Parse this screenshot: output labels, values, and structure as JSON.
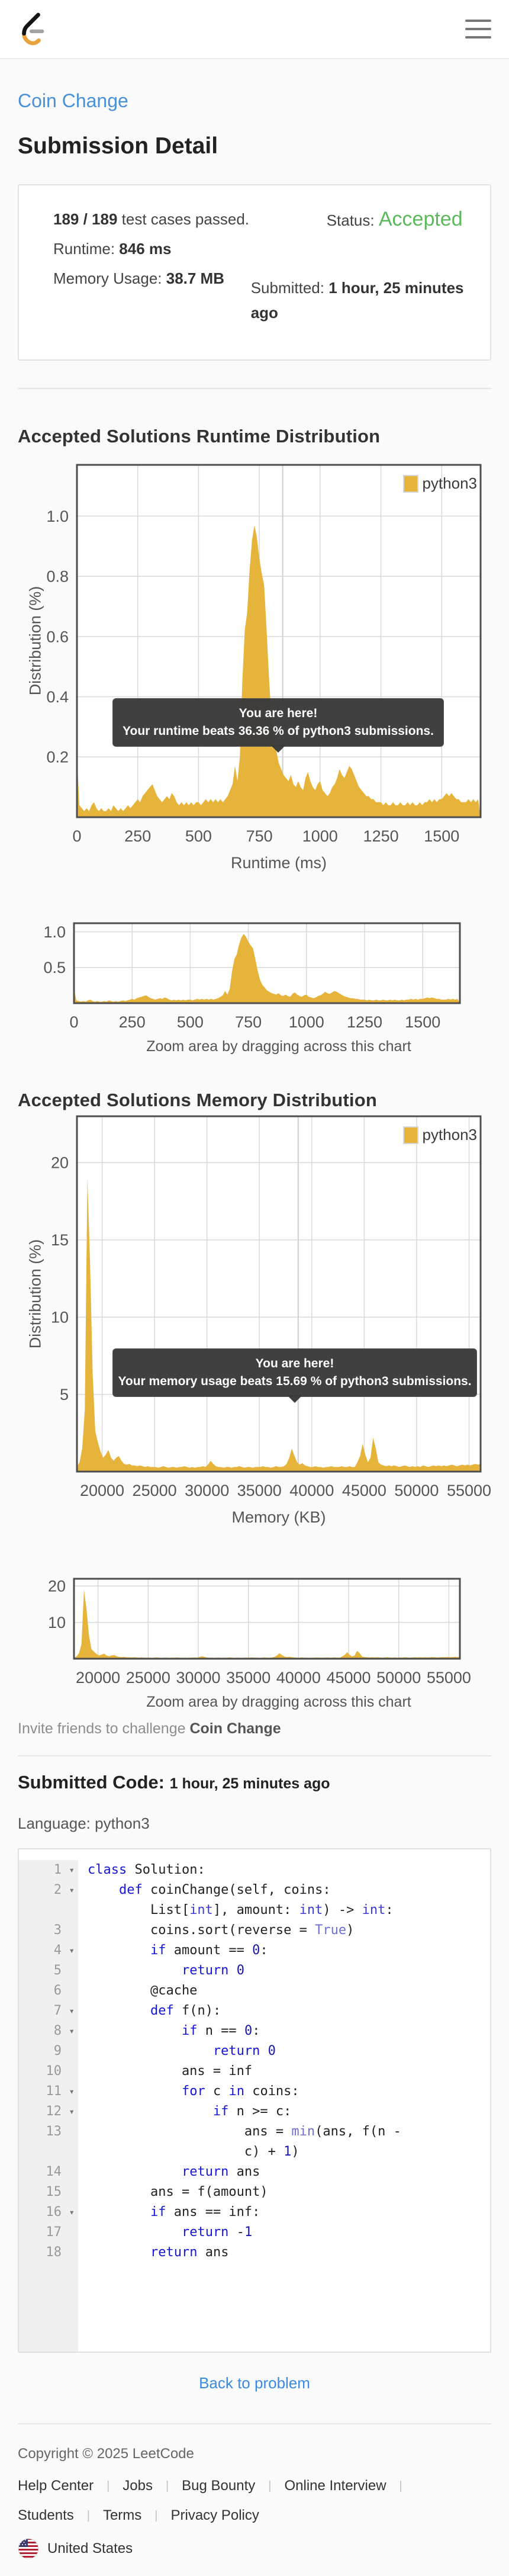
{
  "breadcrumb": {
    "problem_link": "Coin Change"
  },
  "page": {
    "title": "Submission Detail"
  },
  "summary": {
    "tests_bold": "189 / 189",
    "tests_rest": " test cases passed.",
    "runtime_label": "Runtime:",
    "runtime_value": "846 ms",
    "memory_label": "Memory Usage:",
    "memory_value": "38.7 MB",
    "status_label": "Status:",
    "status_value": "Accepted",
    "submitted_label": "Submitted:",
    "submitted_value": "1 hour, 25 minutes ago"
  },
  "runtime_section": {
    "title": "Accepted Solutions Runtime Distribution",
    "tooltip_line1": "You are here!",
    "tooltip_line2": "Your runtime beats 36.36 % of python3 submissions.",
    "zoom_caption": "Zoom area by dragging across this chart"
  },
  "memory_section": {
    "title": "Accepted Solutions Memory Distribution",
    "tooltip_line1": "You are here!",
    "tooltip_line2": "Your memory usage beats 15.69 % of python3 submissions.",
    "zoom_caption": "Zoom area by dragging across this chart"
  },
  "invite": {
    "prefix": "Invite friends to challenge ",
    "problem": "Coin Change"
  },
  "code_section": {
    "heading": "Submitted Code:",
    "time": "1 hour, 25 minutes ago",
    "language_label": "Language:",
    "language": "python3",
    "back_link": "Back to problem",
    "lines": [
      {
        "n": "1",
        "fold": true,
        "rows": [
          [
            [
              "k",
              "class"
            ],
            [
              "p",
              " Solution:"
            ]
          ]
        ]
      },
      {
        "n": "2",
        "fold": true,
        "rows": [
          [
            [
              "p",
              "    "
            ],
            [
              "k",
              "def"
            ],
            [
              "p",
              " coinChange(self, coins:"
            ]
          ],
          [
            [
              "p",
              "        List["
            ],
            [
              "t",
              "int"
            ],
            [
              "p",
              "], amount: "
            ],
            [
              "t",
              "int"
            ],
            [
              "p",
              ") -> "
            ],
            [
              "t",
              "int"
            ],
            [
              "p",
              ":"
            ]
          ]
        ]
      },
      {
        "n": "3",
        "fold": false,
        "rows": [
          [
            [
              "p",
              "        coins.sort(reverse = "
            ],
            [
              "b",
              "True"
            ],
            [
              "p",
              ")"
            ]
          ]
        ]
      },
      {
        "n": "4",
        "fold": true,
        "rows": [
          [
            [
              "p",
              "        "
            ],
            [
              "k",
              "if"
            ],
            [
              "p",
              " amount == "
            ],
            [
              "n",
              "0"
            ],
            [
              "p",
              ":"
            ]
          ]
        ]
      },
      {
        "n": "5",
        "fold": false,
        "rows": [
          [
            [
              "p",
              "            "
            ],
            [
              "k",
              "return"
            ],
            [
              "p",
              " "
            ],
            [
              "n",
              "0"
            ]
          ]
        ]
      },
      {
        "n": "6",
        "fold": false,
        "rows": [
          [
            [
              "p",
              "        @cache"
            ]
          ]
        ]
      },
      {
        "n": "7",
        "fold": true,
        "rows": [
          [
            [
              "p",
              "        "
            ],
            [
              "k",
              "def"
            ],
            [
              "p",
              " f(n):"
            ]
          ]
        ]
      },
      {
        "n": "8",
        "fold": true,
        "rows": [
          [
            [
              "p",
              "            "
            ],
            [
              "k",
              "if"
            ],
            [
              "p",
              " n == "
            ],
            [
              "n",
              "0"
            ],
            [
              "p",
              ":"
            ]
          ]
        ]
      },
      {
        "n": "9",
        "fold": false,
        "rows": [
          [
            [
              "p",
              "                "
            ],
            [
              "k",
              "return"
            ],
            [
              "p",
              " "
            ],
            [
              "n",
              "0"
            ]
          ]
        ]
      },
      {
        "n": "10",
        "fold": false,
        "rows": [
          [
            [
              "p",
              "            ans = inf"
            ]
          ]
        ]
      },
      {
        "n": "11",
        "fold": true,
        "rows": [
          [
            [
              "p",
              "            "
            ],
            [
              "k",
              "for"
            ],
            [
              "p",
              " c "
            ],
            [
              "k",
              "in"
            ],
            [
              "p",
              " coins:"
            ]
          ]
        ]
      },
      {
        "n": "12",
        "fold": true,
        "rows": [
          [
            [
              "p",
              "                "
            ],
            [
              "k",
              "if"
            ],
            [
              "p",
              " n >= c:"
            ]
          ]
        ]
      },
      {
        "n": "13",
        "fold": false,
        "rows": [
          [
            [
              "p",
              "                    ans = "
            ],
            [
              "b",
              "min"
            ],
            [
              "p",
              "(ans, f(n -"
            ]
          ],
          [
            [
              "p",
              "                    c) + "
            ],
            [
              "n",
              "1"
            ],
            [
              "p",
              ")"
            ]
          ]
        ]
      },
      {
        "n": "14",
        "fold": false,
        "rows": [
          [
            [
              "p",
              "            "
            ],
            [
              "k",
              "return"
            ],
            [
              "p",
              " ans"
            ]
          ]
        ]
      },
      {
        "n": "15",
        "fold": false,
        "rows": [
          [
            [
              "p",
              "        ans = f(amount)"
            ]
          ]
        ]
      },
      {
        "n": "16",
        "fold": true,
        "rows": [
          [
            [
              "p",
              "        "
            ],
            [
              "k",
              "if"
            ],
            [
              "p",
              " ans == inf:"
            ]
          ]
        ]
      },
      {
        "n": "17",
        "fold": false,
        "rows": [
          [
            [
              "p",
              "            "
            ],
            [
              "k",
              "return"
            ],
            [
              "p",
              " -"
            ],
            [
              "n",
              "1"
            ]
          ]
        ]
      },
      {
        "n": "18",
        "fold": false,
        "rows": [
          [
            [
              "p",
              "        "
            ],
            [
              "k",
              "return"
            ],
            [
              "p",
              " ans"
            ]
          ]
        ]
      }
    ]
  },
  "footer": {
    "copyright": "Copyright © 2025 LeetCode",
    "separator": "|",
    "links": [
      "Help Center",
      "Jobs",
      "Bug Bounty",
      "Online Interview",
      "Students",
      "Terms",
      "Privacy Policy"
    ],
    "region": "United States"
  },
  "chart_data": [
    {
      "type": "area",
      "name": "runtime-distribution",
      "title": "Accepted Solutions Runtime Distribution",
      "xlabel": "Runtime (ms)",
      "ylabel": "Distribution (%)",
      "legend": "python3",
      "color": "#e7b43b",
      "grid": true,
      "legend_position": "top-right",
      "x_range": [
        0,
        1660
      ],
      "y_range": [
        0,
        1.17
      ],
      "x_start": 0,
      "x_step": 10,
      "marker_x": 846,
      "xticks": [
        {
          "v": 0,
          "l": "0"
        },
        {
          "v": 250,
          "l": "250"
        },
        {
          "v": 500,
          "l": "500"
        },
        {
          "v": 750,
          "l": "750"
        },
        {
          "v": 1000,
          "l": "1000"
        },
        {
          "v": 1250,
          "l": "1250"
        },
        {
          "v": 1500,
          "l": "1500"
        }
      ],
      "yticks": [
        {
          "v": 0.2,
          "l": "0.2"
        },
        {
          "v": 0.4,
          "l": "0.4"
        },
        {
          "v": 0.6,
          "l": "0.6"
        },
        {
          "v": 0.8,
          "l": "0.8"
        },
        {
          "v": 1.0,
          "l": "1.0"
        }
      ],
      "values": [
        0.21,
        0.04,
        0.03,
        0.02,
        0.03,
        0.02,
        0.04,
        0.05,
        0.03,
        0.02,
        0.03,
        0.02,
        0.02,
        0.03,
        0.02,
        0.04,
        0.03,
        0.02,
        0.03,
        0.02,
        0.03,
        0.04,
        0.03,
        0.04,
        0.05,
        0.06,
        0.05,
        0.07,
        0.08,
        0.09,
        0.1,
        0.11,
        0.09,
        0.07,
        0.06,
        0.05,
        0.06,
        0.07,
        0.06,
        0.08,
        0.07,
        0.05,
        0.04,
        0.05,
        0.04,
        0.05,
        0.04,
        0.05,
        0.04,
        0.05,
        0.05,
        0.04,
        0.05,
        0.06,
        0.05,
        0.06,
        0.05,
        0.06,
        0.05,
        0.06,
        0.05,
        0.06,
        0.07,
        0.09,
        0.11,
        0.17,
        0.12,
        0.2,
        0.45,
        0.62,
        0.68,
        0.82,
        0.92,
        0.97,
        0.93,
        0.86,
        0.81,
        0.77,
        0.62,
        0.46,
        0.33,
        0.26,
        0.22,
        0.18,
        0.16,
        0.14,
        0.13,
        0.12,
        0.14,
        0.11,
        0.1,
        0.12,
        0.1,
        0.09,
        0.13,
        0.15,
        0.12,
        0.1,
        0.09,
        0.11,
        0.12,
        0.09,
        0.08,
        0.07,
        0.08,
        0.1,
        0.11,
        0.13,
        0.16,
        0.14,
        0.13,
        0.15,
        0.17,
        0.16,
        0.14,
        0.12,
        0.1,
        0.09,
        0.08,
        0.07,
        0.07,
        0.06,
        0.06,
        0.05,
        0.05,
        0.05,
        0.04,
        0.05,
        0.04,
        0.04,
        0.05,
        0.04,
        0.04,
        0.05,
        0.04,
        0.04,
        0.05,
        0.04,
        0.05,
        0.04,
        0.04,
        0.05,
        0.04,
        0.05,
        0.05,
        0.06,
        0.05,
        0.06,
        0.05,
        0.06,
        0.06,
        0.07,
        0.08,
        0.07,
        0.08,
        0.07,
        0.06,
        0.06,
        0.05,
        0.05,
        0.05,
        0.06,
        0.05,
        0.06,
        0.05,
        0.06
      ]
    },
    {
      "type": "area",
      "name": "runtime-zoom",
      "xlabel": "",
      "ylabel": "",
      "color": "#e7b43b",
      "grid": true,
      "x_range": [
        0,
        1660
      ],
      "y_range": [
        0,
        1.12
      ],
      "x_start": 0,
      "x_step": 10,
      "marker_x": null,
      "values_from": 0,
      "xticks": [
        {
          "v": 0,
          "l": "0"
        },
        {
          "v": 250,
          "l": "250"
        },
        {
          "v": 500,
          "l": "500"
        },
        {
          "v": 750,
          "l": "750"
        },
        {
          "v": 1000,
          "l": "1000"
        },
        {
          "v": 1250,
          "l": "1250"
        },
        {
          "v": 1500,
          "l": "1500"
        }
      ],
      "yticks": [
        {
          "v": 0.5,
          "l": "0.5"
        },
        {
          "v": 1.0,
          "l": "1.0"
        }
      ]
    },
    {
      "type": "area",
      "name": "memory-distribution",
      "title": "Accepted Solutions Memory Distribution",
      "xlabel": "Memory (KB)",
      "ylabel": "Distribution (%)",
      "legend": "python3",
      "color": "#e7b43b",
      "grid": true,
      "legend_position": "top-right",
      "x_range": [
        17600,
        56100
      ],
      "y_range": [
        0,
        23
      ],
      "x_start": 17600,
      "x_step": 250,
      "marker_x": 38700,
      "xticks": [
        {
          "v": 20000,
          "l": "20000"
        },
        {
          "v": 25000,
          "l": "25000"
        },
        {
          "v": 30000,
          "l": "30000"
        },
        {
          "v": 35000,
          "l": "35000"
        },
        {
          "v": 40000,
          "l": "40000"
        },
        {
          "v": 45000,
          "l": "45000"
        },
        {
          "v": 50000,
          "l": "50000"
        },
        {
          "v": 55000,
          "l": "55000"
        }
      ],
      "yticks": [
        {
          "v": 5,
          "l": "5"
        },
        {
          "v": 10,
          "l": "10"
        },
        {
          "v": 15,
          "l": "15"
        },
        {
          "v": 20,
          "l": "20"
        }
      ],
      "values": [
        0.3,
        0.6,
        1.5,
        4.0,
        19.0,
        13.6,
        6.3,
        2.6,
        1.9,
        1.3,
        0.9,
        1.1,
        1.4,
        0.9,
        0.7,
        0.9,
        1.0,
        0.7,
        0.5,
        0.45,
        0.5,
        0.4,
        0.4,
        0.35,
        0.4,
        0.35,
        0.3,
        0.35,
        0.3,
        0.3,
        0.3,
        0.25,
        0.3,
        0.35,
        0.3,
        0.25,
        0.3,
        0.3,
        0.25,
        0.3,
        0.3,
        0.35,
        0.3,
        0.25,
        0.3,
        0.25,
        0.3,
        0.3,
        0.35,
        0.3,
        0.45,
        0.7,
        0.5,
        0.35,
        0.3,
        0.3,
        0.25,
        0.3,
        0.3,
        0.25,
        0.3,
        0.3,
        0.35,
        0.3,
        0.25,
        0.3,
        0.3,
        0.25,
        0.3,
        0.3,
        0.3,
        0.35,
        0.3,
        0.3,
        0.25,
        0.3,
        0.35,
        0.3,
        0.3,
        0.35,
        0.5,
        0.9,
        1.5,
        1.0,
        0.6,
        0.45,
        0.55,
        0.4,
        0.35,
        0.3,
        0.3,
        0.35,
        0.3,
        0.3,
        0.25,
        0.3,
        0.3,
        0.35,
        0.3,
        0.3,
        0.3,
        0.35,
        0.3,
        0.3,
        0.35,
        0.3,
        0.3,
        0.6,
        1.0,
        1.8,
        1.1,
        0.6,
        0.9,
        2.2,
        1.5,
        0.6,
        0.45,
        0.4,
        0.35,
        0.4,
        0.35,
        0.4,
        0.35,
        0.3,
        0.35,
        0.4,
        0.35,
        0.3,
        0.35,
        0.3,
        0.35,
        0.3,
        0.4,
        0.35,
        0.3,
        0.35,
        0.4,
        0.35,
        0.4,
        0.35,
        0.4,
        0.35,
        0.4,
        0.45,
        0.4,
        0.35,
        0.4,
        0.45,
        0.4,
        0.45,
        0.4,
        0.45,
        0.5,
        0.45,
        0.5
      ]
    },
    {
      "type": "area",
      "name": "memory-zoom",
      "xlabel": "",
      "ylabel": "",
      "color": "#e7b43b",
      "grid": true,
      "x_range": [
        17600,
        56100
      ],
      "y_range": [
        0,
        22
      ],
      "x_start": 17600,
      "x_step": 250,
      "marker_x": null,
      "values_from": 2,
      "xticks": [
        {
          "v": 20000,
          "l": "20000"
        },
        {
          "v": 25000,
          "l": "25000"
        },
        {
          "v": 30000,
          "l": "30000"
        },
        {
          "v": 35000,
          "l": "35000"
        },
        {
          "v": 40000,
          "l": "40000"
        },
        {
          "v": 45000,
          "l": "45000"
        },
        {
          "v": 50000,
          "l": "50000"
        },
        {
          "v": 55000,
          "l": "55000"
        }
      ],
      "yticks": [
        {
          "v": 10,
          "l": "10"
        },
        {
          "v": 20,
          "l": "20"
        }
      ]
    }
  ]
}
